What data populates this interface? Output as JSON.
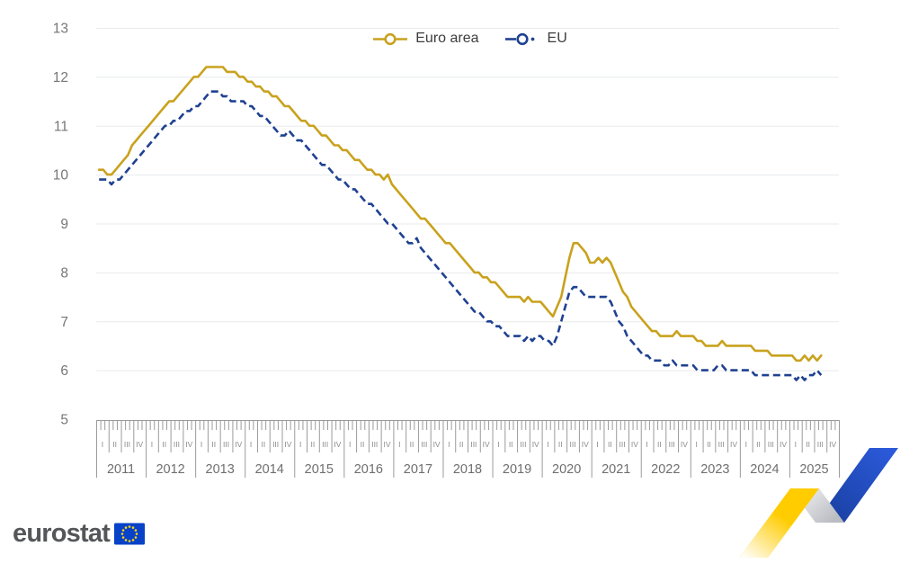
{
  "branding": {
    "logo_text": "eurostat",
    "flag": {
      "blue": "#0842c8",
      "stars": "#ffd617"
    },
    "ribbon_colors": {
      "yellow": "#ffcc00",
      "gray": "#c6c8cc",
      "blue": "#2151c4"
    }
  },
  "axis_colors": {
    "grid": "#e8eaec",
    "ruler": "#9b9b9b",
    "tick_label": "#767676",
    "quarter_label": "#8c8c8c",
    "year_label": "#6e6e6e"
  },
  "chart_data": {
    "type": "line",
    "title": "",
    "grid": "horizontal",
    "legend_position": "top-center",
    "ylim": [
      5,
      13
    ],
    "yticks": [
      5,
      6,
      7,
      8,
      9,
      10,
      11,
      12,
      13
    ],
    "x": {
      "start": "2011-01",
      "end": "2025-08",
      "freq": "monthly"
    },
    "years": [
      "2011",
      "2012",
      "2013",
      "2014",
      "2015",
      "2016",
      "2017",
      "2018",
      "2019",
      "2020",
      "2021",
      "2022",
      "2023",
      "2024",
      "2025"
    ],
    "quarter_labels": [
      "I",
      "II",
      "III",
      "IV"
    ],
    "series": [
      {
        "name": "Euro area",
        "color": "#C9A21D",
        "style": "solid",
        "values": [
          10.1,
          10.1,
          10.0,
          10.0,
          10.1,
          10.2,
          10.3,
          10.4,
          10.6,
          10.7,
          10.8,
          10.9,
          11.0,
          11.1,
          11.2,
          11.3,
          11.4,
          11.5,
          11.5,
          11.6,
          11.7,
          11.8,
          11.9,
          12.0,
          12.0,
          12.1,
          12.2,
          12.2,
          12.2,
          12.2,
          12.2,
          12.1,
          12.1,
          12.1,
          12.0,
          12.0,
          11.9,
          11.9,
          11.8,
          11.8,
          11.7,
          11.7,
          11.6,
          11.6,
          11.5,
          11.4,
          11.4,
          11.3,
          11.2,
          11.1,
          11.1,
          11.0,
          11.0,
          10.9,
          10.8,
          10.8,
          10.7,
          10.6,
          10.6,
          10.5,
          10.5,
          10.4,
          10.3,
          10.3,
          10.2,
          10.1,
          10.1,
          10.0,
          10.0,
          9.9,
          10.0,
          9.8,
          9.7,
          9.6,
          9.5,
          9.4,
          9.3,
          9.2,
          9.1,
          9.1,
          9.0,
          8.9,
          8.8,
          8.7,
          8.6,
          8.6,
          8.5,
          8.4,
          8.3,
          8.2,
          8.1,
          8.0,
          8.0,
          7.9,
          7.9,
          7.8,
          7.8,
          7.7,
          7.6,
          7.5,
          7.5,
          7.5,
          7.5,
          7.4,
          7.5,
          7.4,
          7.4,
          7.4,
          7.3,
          7.2,
          7.1,
          7.3,
          7.5,
          7.9,
          8.3,
          8.6,
          8.6,
          8.5,
          8.4,
          8.2,
          8.2,
          8.3,
          8.2,
          8.3,
          8.2,
          8.0,
          7.8,
          7.6,
          7.5,
          7.3,
          7.2,
          7.1,
          7.0,
          6.9,
          6.8,
          6.8,
          6.7,
          6.7,
          6.7,
          6.7,
          6.8,
          6.7,
          6.7,
          6.7,
          6.7,
          6.6,
          6.6,
          6.5,
          6.5,
          6.5,
          6.5,
          6.6,
          6.5,
          6.5,
          6.5,
          6.5,
          6.5,
          6.5,
          6.5,
          6.4,
          6.4,
          6.4,
          6.4,
          6.3,
          6.3,
          6.3,
          6.3,
          6.3,
          6.3,
          6.2,
          6.2,
          6.3,
          6.2,
          6.3,
          6.2,
          6.3
        ]
      },
      {
        "name": "EU",
        "color": "#1F4191",
        "style": "dashed",
        "values": [
          9.9,
          9.9,
          9.9,
          9.8,
          9.9,
          9.9,
          10.0,
          10.1,
          10.2,
          10.3,
          10.4,
          10.5,
          10.6,
          10.7,
          10.8,
          10.9,
          11.0,
          11.0,
          11.1,
          11.1,
          11.2,
          11.3,
          11.3,
          11.4,
          11.4,
          11.5,
          11.6,
          11.7,
          11.7,
          11.7,
          11.6,
          11.6,
          11.5,
          11.5,
          11.5,
          11.5,
          11.4,
          11.4,
          11.3,
          11.2,
          11.2,
          11.1,
          11.0,
          10.9,
          10.8,
          10.8,
          10.9,
          10.8,
          10.7,
          10.7,
          10.6,
          10.5,
          10.4,
          10.3,
          10.2,
          10.2,
          10.1,
          10.0,
          9.9,
          9.9,
          9.8,
          9.7,
          9.7,
          9.6,
          9.5,
          9.4,
          9.4,
          9.3,
          9.2,
          9.1,
          9.0,
          9.0,
          8.9,
          8.8,
          8.7,
          8.6,
          8.6,
          8.7,
          8.5,
          8.4,
          8.3,
          8.2,
          8.1,
          8.0,
          7.9,
          7.8,
          7.7,
          7.6,
          7.5,
          7.4,
          7.3,
          7.2,
          7.2,
          7.1,
          7.0,
          7.0,
          6.9,
          6.9,
          6.8,
          6.7,
          6.7,
          6.7,
          6.7,
          6.6,
          6.7,
          6.6,
          6.7,
          6.7,
          6.6,
          6.6,
          6.5,
          6.7,
          7.0,
          7.3,
          7.6,
          7.7,
          7.7,
          7.6,
          7.5,
          7.5,
          7.5,
          7.5,
          7.5,
          7.5,
          7.4,
          7.2,
          7.0,
          6.9,
          6.7,
          6.6,
          6.5,
          6.4,
          6.3,
          6.3,
          6.2,
          6.2,
          6.2,
          6.1,
          6.1,
          6.2,
          6.1,
          6.1,
          6.1,
          6.1,
          6.1,
          6.0,
          6.0,
          6.0,
          6.0,
          6.0,
          6.1,
          6.1,
          6.0,
          6.0,
          6.0,
          6.0,
          6.0,
          6.0,
          6.0,
          5.9,
          5.9,
          5.9,
          5.9,
          5.9,
          5.9,
          5.9,
          5.9,
          5.9,
          5.9,
          5.8,
          5.9,
          5.8,
          5.9,
          5.9,
          6.0,
          5.9
        ]
      }
    ]
  }
}
